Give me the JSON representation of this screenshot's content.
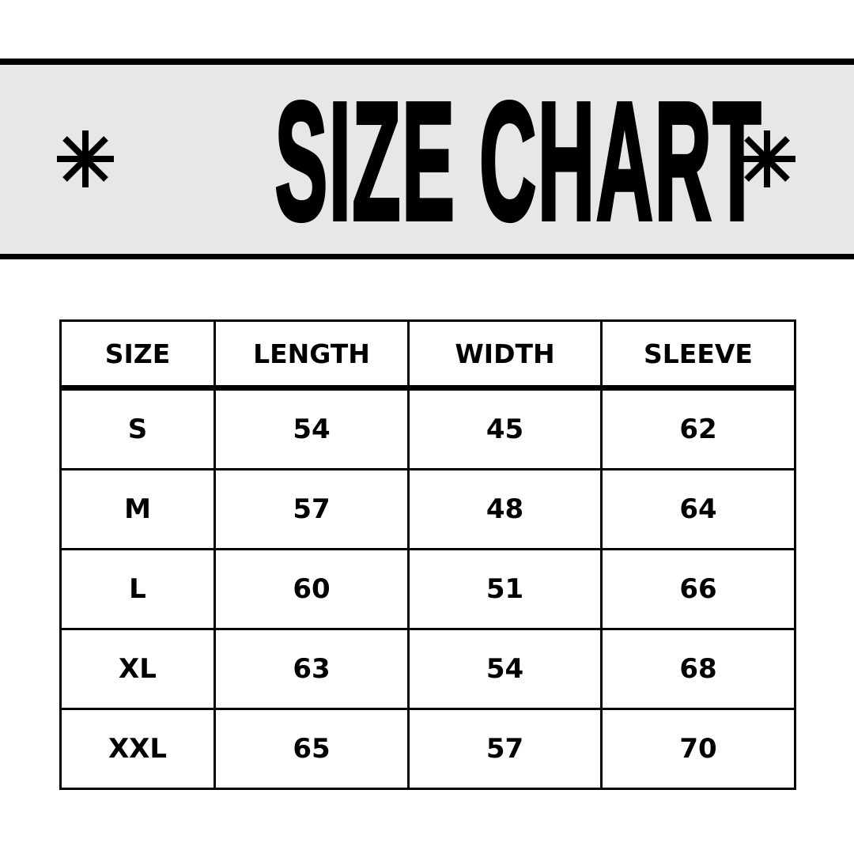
{
  "title": "SIZE CHART",
  "icons": {
    "left": "asterisk-icon",
    "right": "asterisk-icon"
  },
  "colors": {
    "band": "#e7e7e7",
    "ink": "#000000"
  },
  "table": {
    "headers": [
      "SIZE",
      "LENGTH",
      "WIDTH",
      "SLEEVE"
    ],
    "rows": [
      [
        "S",
        "54",
        "45",
        "62"
      ],
      [
        "M",
        "57",
        "48",
        "64"
      ],
      [
        "L",
        "60",
        "51",
        "66"
      ],
      [
        "XL",
        "63",
        "54",
        "68"
      ],
      [
        "XXL",
        "65",
        "57",
        "70"
      ]
    ]
  }
}
